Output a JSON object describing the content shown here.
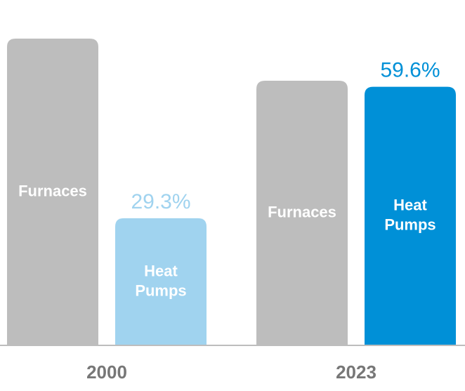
{
  "chart_data": {
    "type": "bar",
    "categories": [
      "2000",
      "2023"
    ],
    "series": [
      {
        "name": "Furnaces",
        "bar_label": [
          "Furnaces"
        ],
        "values": [
          70.7,
          61.0
        ],
        "value_labels": [
          "",
          ""
        ],
        "colors": [
          "#bdbdbd",
          "#bdbdbd"
        ],
        "value_label_colors": [
          "#bdbdbd",
          "#bdbdbd"
        ]
      },
      {
        "name": "Heat Pumps",
        "bar_label": [
          "Heat",
          "Pumps"
        ],
        "values": [
          29.3,
          59.6
        ],
        "value_labels": [
          "29.3%",
          "59.6%"
        ],
        "colors": [
          "#a0d3ef",
          "#0090d7"
        ],
        "value_label_colors": [
          "#a0d3ef",
          "#0090d7"
        ]
      }
    ],
    "title": "",
    "xlabel": "",
    "ylabel": "",
    "ylim": [
      0,
      70.7
    ],
    "grid": false,
    "legend": "none",
    "baseline_color": "#bdbdbd",
    "bar_label_color": "#ffffff",
    "category_label_color": "#777777"
  }
}
